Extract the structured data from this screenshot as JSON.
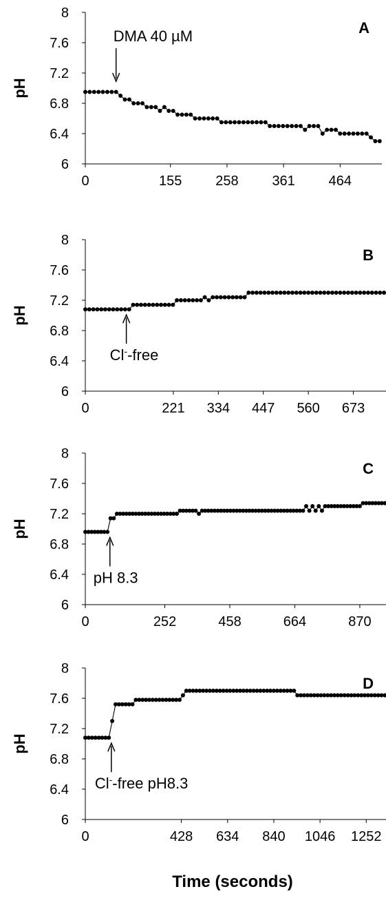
{
  "figure": {
    "x_axis_title": "Time (seconds)"
  },
  "chart_data": [
    {
      "type": "line",
      "panel_label": "A",
      "ylabel": "pH",
      "ylim": [
        6,
        8
      ],
      "y_ticks": [
        6,
        6.4,
        6.8,
        7.2,
        7.6,
        8
      ],
      "y_tick_labels": [
        "6",
        "6.4",
        "6.8",
        "7.2",
        "7.6",
        "8"
      ],
      "xlim": [
        0,
        540
      ],
      "x_ticks": [
        0,
        155,
        258,
        361,
        464
      ],
      "x_tick_labels": [
        "0",
        "155",
        "258",
        "361",
        "464"
      ],
      "annotation": {
        "text": "DMA 40 µM",
        "x": 56
      },
      "annotation_parts": [],
      "series": [
        {
          "x": [
            0,
            8,
            16,
            24,
            32,
            40,
            48,
            56,
            64,
            72,
            80,
            88,
            96,
            104,
            112,
            120,
            128,
            136,
            144,
            152,
            160,
            168,
            176,
            184,
            192,
            200,
            208,
            216,
            224,
            232,
            240,
            248,
            256,
            264,
            272,
            280,
            288,
            296,
            304,
            312,
            320,
            328,
            336,
            344,
            352,
            360,
            368,
            376,
            384,
            392,
            400,
            408,
            416,
            424,
            432,
            440,
            448,
            456,
            464,
            472,
            480,
            488,
            496,
            504,
            512,
            520,
            528,
            536
          ],
          "y": [
            6.95,
            6.95,
            6.95,
            6.95,
            6.95,
            6.95,
            6.95,
            6.95,
            6.9,
            6.85,
            6.85,
            6.8,
            6.8,
            6.8,
            6.75,
            6.75,
            6.75,
            6.7,
            6.75,
            6.7,
            6.7,
            6.65,
            6.65,
            6.65,
            6.65,
            6.6,
            6.6,
            6.6,
            6.6,
            6.6,
            6.6,
            6.55,
            6.55,
            6.55,
            6.55,
            6.55,
            6.55,
            6.55,
            6.55,
            6.55,
            6.55,
            6.55,
            6.5,
            6.5,
            6.5,
            6.5,
            6.5,
            6.5,
            6.5,
            6.5,
            6.45,
            6.5,
            6.5,
            6.5,
            6.4,
            6.45,
            6.45,
            6.45,
            6.4,
            6.4,
            6.4,
            6.4,
            6.4,
            6.4,
            6.4,
            6.35,
            6.3,
            6.3
          ]
        }
      ]
    },
    {
      "type": "line",
      "panel_label": "B",
      "ylabel": "pH",
      "ylim": [
        6,
        8
      ],
      "y_ticks": [
        6,
        6.4,
        6.8,
        7.2,
        7.6,
        8
      ],
      "y_tick_labels": [
        "6",
        "6.4",
        "6.8",
        "7.2",
        "7.6",
        "8"
      ],
      "xlim": [
        0,
        755
      ],
      "x_ticks": [
        0,
        221,
        334,
        447,
        560,
        673
      ],
      "x_tick_labels": [
        "0",
        "221",
        "334",
        "447",
        "560",
        "673"
      ],
      "annotation": {
        "text": "",
        "x": 103
      },
      "annotation_parts": [
        "Cl",
        "-",
        "-free"
      ],
      "series": [
        {
          "x": [
            0,
            10,
            20,
            30,
            40,
            50,
            60,
            70,
            80,
            90,
            100,
            110,
            120,
            130,
            140,
            150,
            160,
            170,
            180,
            190,
            200,
            210,
            220,
            230,
            240,
            250,
            260,
            270,
            280,
            290,
            300,
            310,
            320,
            330,
            340,
            350,
            360,
            370,
            380,
            390,
            400,
            410,
            420,
            430,
            440,
            450,
            460,
            470,
            480,
            490,
            500,
            510,
            520,
            530,
            540,
            550,
            560,
            570,
            580,
            590,
            600,
            610,
            620,
            630,
            640,
            650,
            660,
            670,
            680,
            690,
            700,
            710,
            720,
            730,
            740,
            750
          ],
          "y": [
            7.08,
            7.08,
            7.08,
            7.08,
            7.08,
            7.08,
            7.08,
            7.08,
            7.08,
            7.08,
            7.08,
            7.08,
            7.14,
            7.14,
            7.14,
            7.14,
            7.14,
            7.14,
            7.14,
            7.14,
            7.14,
            7.14,
            7.14,
            7.2,
            7.2,
            7.2,
            7.2,
            7.2,
            7.2,
            7.2,
            7.24,
            7.2,
            7.24,
            7.24,
            7.24,
            7.24,
            7.24,
            7.24,
            7.24,
            7.24,
            7.24,
            7.3,
            7.3,
            7.3,
            7.3,
            7.3,
            7.3,
            7.3,
            7.3,
            7.3,
            7.3,
            7.3,
            7.3,
            7.3,
            7.3,
            7.3,
            7.3,
            7.3,
            7.3,
            7.3,
            7.3,
            7.3,
            7.3,
            7.3,
            7.3,
            7.3,
            7.3,
            7.3,
            7.3,
            7.3,
            7.3,
            7.3,
            7.3,
            7.3,
            7.3,
            7.3
          ]
        }
      ]
    },
    {
      "type": "line",
      "panel_label": "C",
      "ylabel": "pH",
      "ylim": [
        6,
        8
      ],
      "y_ticks": [
        6,
        6.4,
        6.8,
        7.2,
        7.6,
        8
      ],
      "y_tick_labels": [
        "6",
        "6.4",
        "6.8",
        "7.2",
        "7.6",
        "8"
      ],
      "xlim": [
        0,
        953
      ],
      "x_ticks": [
        0,
        252,
        458,
        664,
        870
      ],
      "x_tick_labels": [
        "0",
        "252",
        "458",
        "664",
        "870"
      ],
      "annotation": {
        "text": "pH 8.3",
        "x": 78
      },
      "annotation_parts": [],
      "series": [
        {
          "x": [
            0,
            10,
            20,
            30,
            40,
            50,
            60,
            70,
            80,
            90,
            100,
            110,
            120,
            130,
            140,
            150,
            160,
            170,
            180,
            190,
            200,
            210,
            220,
            230,
            240,
            250,
            260,
            270,
            280,
            290,
            300,
            310,
            320,
            330,
            340,
            350,
            360,
            370,
            380,
            390,
            400,
            410,
            420,
            430,
            440,
            450,
            460,
            470,
            480,
            490,
            500,
            510,
            520,
            530,
            540,
            550,
            560,
            570,
            580,
            590,
            600,
            610,
            620,
            630,
            640,
            650,
            660,
            670,
            680,
            690,
            700,
            710,
            720,
            730,
            740,
            750,
            760,
            770,
            780,
            790,
            800,
            810,
            820,
            830,
            840,
            850,
            860,
            870,
            880,
            890,
            900,
            910,
            920,
            930,
            940,
            950
          ],
          "y": [
            6.96,
            6.96,
            6.96,
            6.96,
            6.96,
            6.96,
            6.96,
            6.96,
            7.14,
            7.14,
            7.2,
            7.2,
            7.2,
            7.2,
            7.2,
            7.2,
            7.2,
            7.2,
            7.2,
            7.2,
            7.2,
            7.2,
            7.2,
            7.2,
            7.2,
            7.2,
            7.2,
            7.2,
            7.2,
            7.2,
            7.24,
            7.24,
            7.24,
            7.24,
            7.24,
            7.24,
            7.2,
            7.24,
            7.24,
            7.24,
            7.24,
            7.24,
            7.24,
            7.24,
            7.24,
            7.24,
            7.24,
            7.24,
            7.24,
            7.24,
            7.24,
            7.24,
            7.24,
            7.24,
            7.24,
            7.24,
            7.24,
            7.24,
            7.24,
            7.24,
            7.24,
            7.24,
            7.24,
            7.24,
            7.24,
            7.24,
            7.24,
            7.24,
            7.24,
            7.24,
            7.3,
            7.24,
            7.3,
            7.24,
            7.3,
            7.24,
            7.3,
            7.3,
            7.3,
            7.3,
            7.3,
            7.3,
            7.3,
            7.3,
            7.3,
            7.3,
            7.3,
            7.3,
            7.34,
            7.34,
            7.34,
            7.34,
            7.34,
            7.34,
            7.34,
            7.34
          ]
        }
      ]
    },
    {
      "type": "line",
      "panel_label": "D",
      "ylabel": "pH",
      "ylim": [
        6,
        8
      ],
      "y_ticks": [
        6,
        6.4,
        6.8,
        7.2,
        7.6,
        8
      ],
      "y_tick_labels": [
        "6",
        "6.4",
        "6.8",
        "7.2",
        "7.6",
        "8"
      ],
      "xlim": [
        0,
        1340
      ],
      "x_ticks": [
        0,
        428,
        634,
        840,
        1046,
        1252
      ],
      "x_tick_labels": [
        "0",
        "428",
        "634",
        "840",
        "1046",
        "1252"
      ],
      "annotation": {
        "text": "",
        "x": 116
      },
      "annotation_parts": [
        "Cl",
        "-",
        "-free pH8.3"
      ],
      "series": [
        {
          "x": [
            0,
            15,
            30,
            45,
            60,
            75,
            90,
            105,
            120,
            135,
            150,
            165,
            180,
            195,
            210,
            225,
            240,
            255,
            270,
            285,
            300,
            315,
            330,
            345,
            360,
            375,
            390,
            405,
            420,
            435,
            450,
            465,
            480,
            495,
            510,
            525,
            540,
            555,
            570,
            585,
            600,
            615,
            630,
            645,
            660,
            675,
            690,
            705,
            720,
            735,
            750,
            765,
            780,
            795,
            810,
            825,
            840,
            855,
            870,
            885,
            900,
            915,
            930,
            945,
            960,
            975,
            990,
            1005,
            1020,
            1035,
            1050,
            1065,
            1080,
            1095,
            1110,
            1125,
            1140,
            1155,
            1170,
            1185,
            1200,
            1215,
            1230,
            1245,
            1260,
            1275,
            1290,
            1305,
            1320,
            1335
          ],
          "y": [
            7.08,
            7.08,
            7.08,
            7.08,
            7.08,
            7.08,
            7.08,
            7.08,
            7.3,
            7.52,
            7.52,
            7.52,
            7.52,
            7.52,
            7.52,
            7.58,
            7.58,
            7.58,
            7.58,
            7.58,
            7.58,
            7.58,
            7.58,
            7.58,
            7.58,
            7.58,
            7.58,
            7.58,
            7.58,
            7.64,
            7.7,
            7.7,
            7.7,
            7.7,
            7.7,
            7.7,
            7.7,
            7.7,
            7.7,
            7.7,
            7.7,
            7.7,
            7.7,
            7.7,
            7.7,
            7.7,
            7.7,
            7.7,
            7.7,
            7.7,
            7.7,
            7.7,
            7.7,
            7.7,
            7.7,
            7.7,
            7.7,
            7.7,
            7.7,
            7.7,
            7.7,
            7.7,
            7.7,
            7.64,
            7.64,
            7.64,
            7.64,
            7.64,
            7.64,
            7.64,
            7.64,
            7.64,
            7.64,
            7.64,
            7.64,
            7.64,
            7.64,
            7.64,
            7.64,
            7.64,
            7.64,
            7.64,
            7.64,
            7.64,
            7.64,
            7.64,
            7.64,
            7.64,
            7.64,
            7.64
          ]
        }
      ]
    }
  ]
}
